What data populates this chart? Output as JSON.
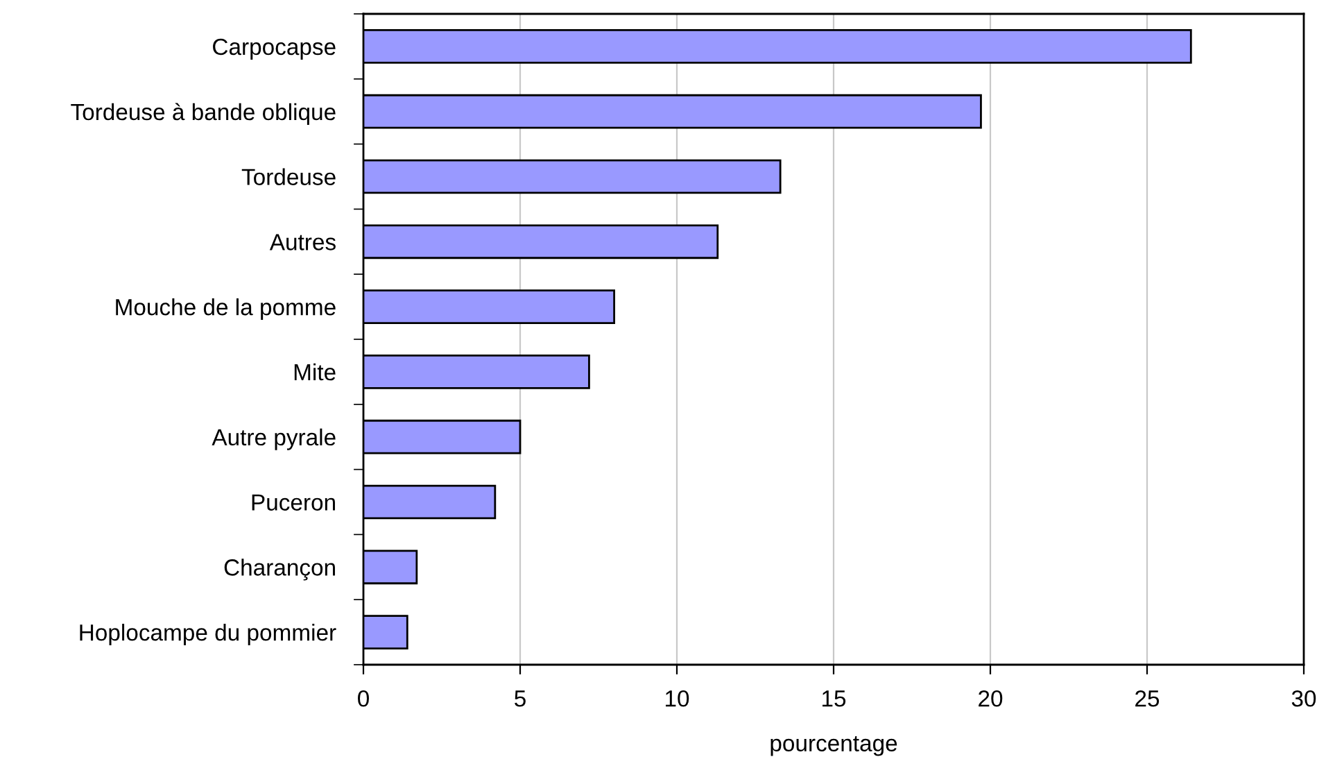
{
  "chart_data": {
    "type": "bar",
    "orientation": "horizontal",
    "xlabel": "pourcentage",
    "categories": [
      "Carpocapse",
      "Tordeuse à bande oblique",
      "Tordeuse",
      "Autres",
      "Mouche de la pomme",
      "Mite",
      "Autre pyrale",
      "Puceron",
      "Charançon",
      "Hoplocampe du pommier"
    ],
    "values": [
      26.4,
      19.7,
      13.3,
      11.3,
      8.0,
      7.2,
      5.0,
      4.2,
      1.7,
      1.4
    ],
    "color": "#9999ff",
    "xlim": [
      0,
      30
    ],
    "xticks": [
      0,
      5,
      10,
      15,
      20,
      25,
      30
    ],
    "grid": "x",
    "legend": false
  }
}
